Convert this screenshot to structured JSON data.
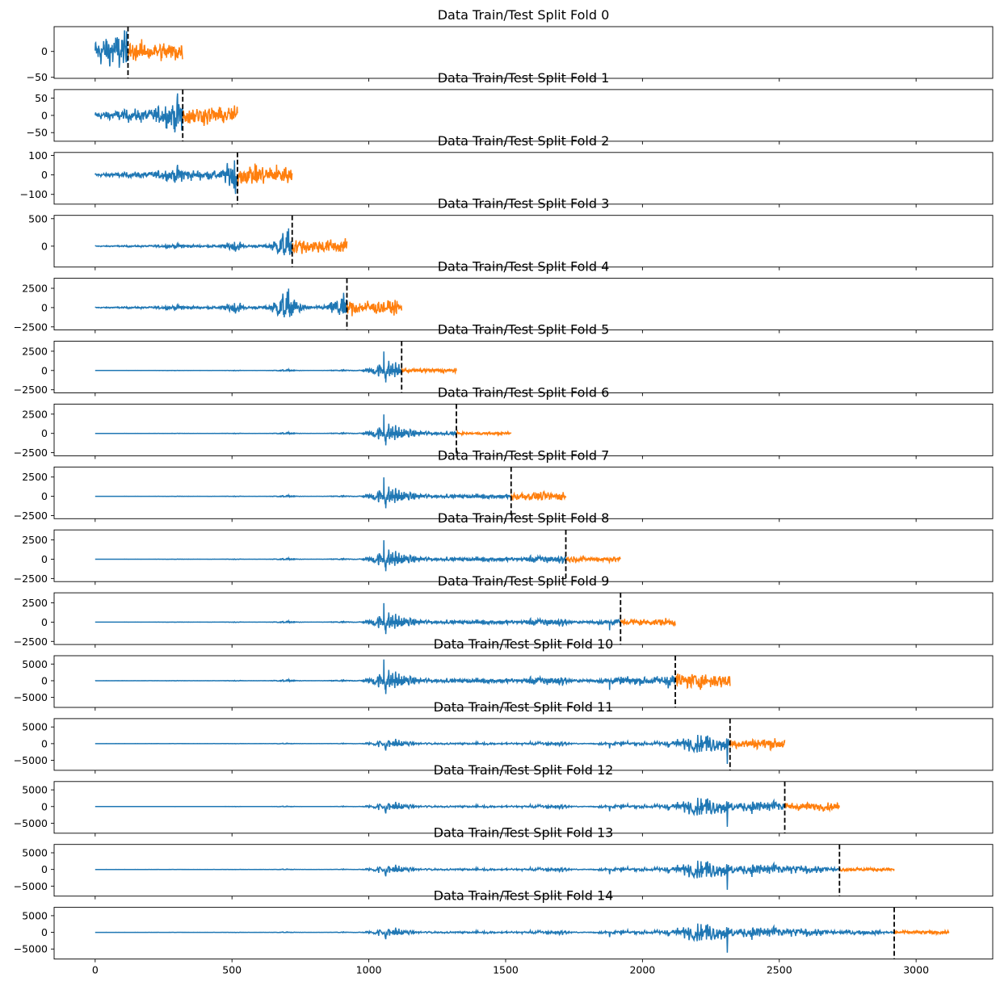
{
  "chart_data": {
    "type": "line",
    "figure": {
      "rows": 15,
      "sharex": true,
      "xlim": [
        -150,
        3280
      ],
      "xticks": [
        0,
        500,
        1000,
        1500,
        2000,
        2500,
        3000
      ]
    },
    "colors": {
      "train": "#1f77b4",
      "test": "#ff7f0e",
      "split": "#000000"
    },
    "panels": [
      {
        "title": "Data Train/Test Split Fold 0",
        "train_end": 120,
        "test_end": 320,
        "ylim": [
          -52,
          48
        ],
        "yticks": [
          -50,
          0
        ],
        "ytick_labels": [
          "−50",
          "0"
        ],
        "test_amp": 30
      },
      {
        "title": "Data Train/Test Split Fold 1",
        "train_end": 320,
        "test_end": 520,
        "ylim": [
          -75,
          75
        ],
        "yticks": [
          -50,
          0,
          50
        ],
        "ytick_labels": [
          "−50",
          "0",
          "50"
        ],
        "test_amp": 45
      },
      {
        "title": "Data Train/Test Split Fold 2",
        "train_end": 520,
        "test_end": 720,
        "ylim": [
          -150,
          115
        ],
        "yticks": [
          -100,
          0,
          100
        ],
        "ytick_labels": [
          "−100",
          "0",
          "100"
        ],
        "test_amp": 80
      },
      {
        "title": "Data Train/Test Split Fold 3",
        "train_end": 720,
        "test_end": 920,
        "ylim": [
          -380,
          560
        ],
        "yticks": [
          0,
          500
        ],
        "ytick_labels": [
          "0",
          "500"
        ],
        "test_amp": 220
      },
      {
        "title": "Data Train/Test Split Fold 4",
        "train_end": 920,
        "test_end": 1120,
        "ylim": [
          -2900,
          3800
        ],
        "yticks": [
          -2500,
          0,
          2500
        ],
        "ytick_labels": [
          "−2500",
          "0",
          "2500"
        ],
        "test_amp": 1500
      },
      {
        "title": "Data Train/Test Split Fold 5",
        "train_end": 1120,
        "test_end": 1320,
        "ylim": [
          -2900,
          3800
        ],
        "yticks": [
          -2500,
          0,
          2500
        ],
        "ytick_labels": [
          "−2500",
          "0",
          "2500"
        ],
        "test_amp": 420
      },
      {
        "title": "Data Train/Test Split Fold 6",
        "train_end": 1320,
        "test_end": 1520,
        "ylim": [
          -2900,
          3800
        ],
        "yticks": [
          -2500,
          0,
          2500
        ],
        "ytick_labels": [
          "−2500",
          "0",
          "2500"
        ],
        "test_amp": 280
      },
      {
        "title": "Data Train/Test Split Fold 7",
        "train_end": 1520,
        "test_end": 1720,
        "ylim": [
          -2900,
          3800
        ],
        "yticks": [
          -2500,
          0,
          2500
        ],
        "ytick_labels": [
          "−2500",
          "0",
          "2500"
        ],
        "test_amp": 900
      },
      {
        "title": "Data Train/Test Split Fold 8",
        "train_end": 1720,
        "test_end": 1920,
        "ylim": [
          -2900,
          3800
        ],
        "yticks": [
          -2500,
          0,
          2500
        ],
        "ytick_labels": [
          "−2500",
          "0",
          "2500"
        ],
        "test_amp": 550
      },
      {
        "title": "Data Train/Test Split Fold 9",
        "train_end": 1920,
        "test_end": 2120,
        "ylim": [
          -2900,
          3800
        ],
        "yticks": [
          -2500,
          0,
          2500
        ],
        "ytick_labels": [
          "−2500",
          "0",
          "2500"
        ],
        "test_amp": 700
      },
      {
        "title": "Data Train/Test Split Fold 10",
        "train_end": 2120,
        "test_end": 2320,
        "ylim": [
          -8000,
          7500
        ],
        "yticks": [
          -5000,
          0,
          5000
        ],
        "ytick_labels": [
          "−5000",
          "0",
          "5000"
        ],
        "test_amp": 3800
      },
      {
        "title": "Data Train/Test Split Fold 11",
        "train_end": 2320,
        "test_end": 2520,
        "ylim": [
          -8000,
          7500
        ],
        "yticks": [
          -5000,
          0,
          5000
        ],
        "ytick_labels": [
          "−5000",
          "0",
          "5000"
        ],
        "test_amp": 2600
      },
      {
        "title": "Data Train/Test Split Fold 12",
        "train_end": 2520,
        "test_end": 2720,
        "ylim": [
          -8000,
          7500
        ],
        "yticks": [
          -5000,
          0,
          5000
        ],
        "ytick_labels": [
          "−5000",
          "0",
          "5000"
        ],
        "test_amp": 1900
      },
      {
        "title": "Data Train/Test Split Fold 13",
        "train_end": 2720,
        "test_end": 2920,
        "ylim": [
          -8000,
          7500
        ],
        "yticks": [
          -5000,
          0,
          5000
        ],
        "ytick_labels": [
          "−5000",
          "0",
          "5000"
        ],
        "test_amp": 850
      },
      {
        "title": "Data Train/Test Split Fold 14",
        "train_end": 2920,
        "test_end": 3120,
        "ylim": [
          -8000,
          7500
        ],
        "yticks": [
          -5000,
          0,
          5000
        ],
        "ytick_labels": [
          "−5000",
          "0",
          "5000"
        ],
        "test_amp": 850
      }
    ]
  }
}
